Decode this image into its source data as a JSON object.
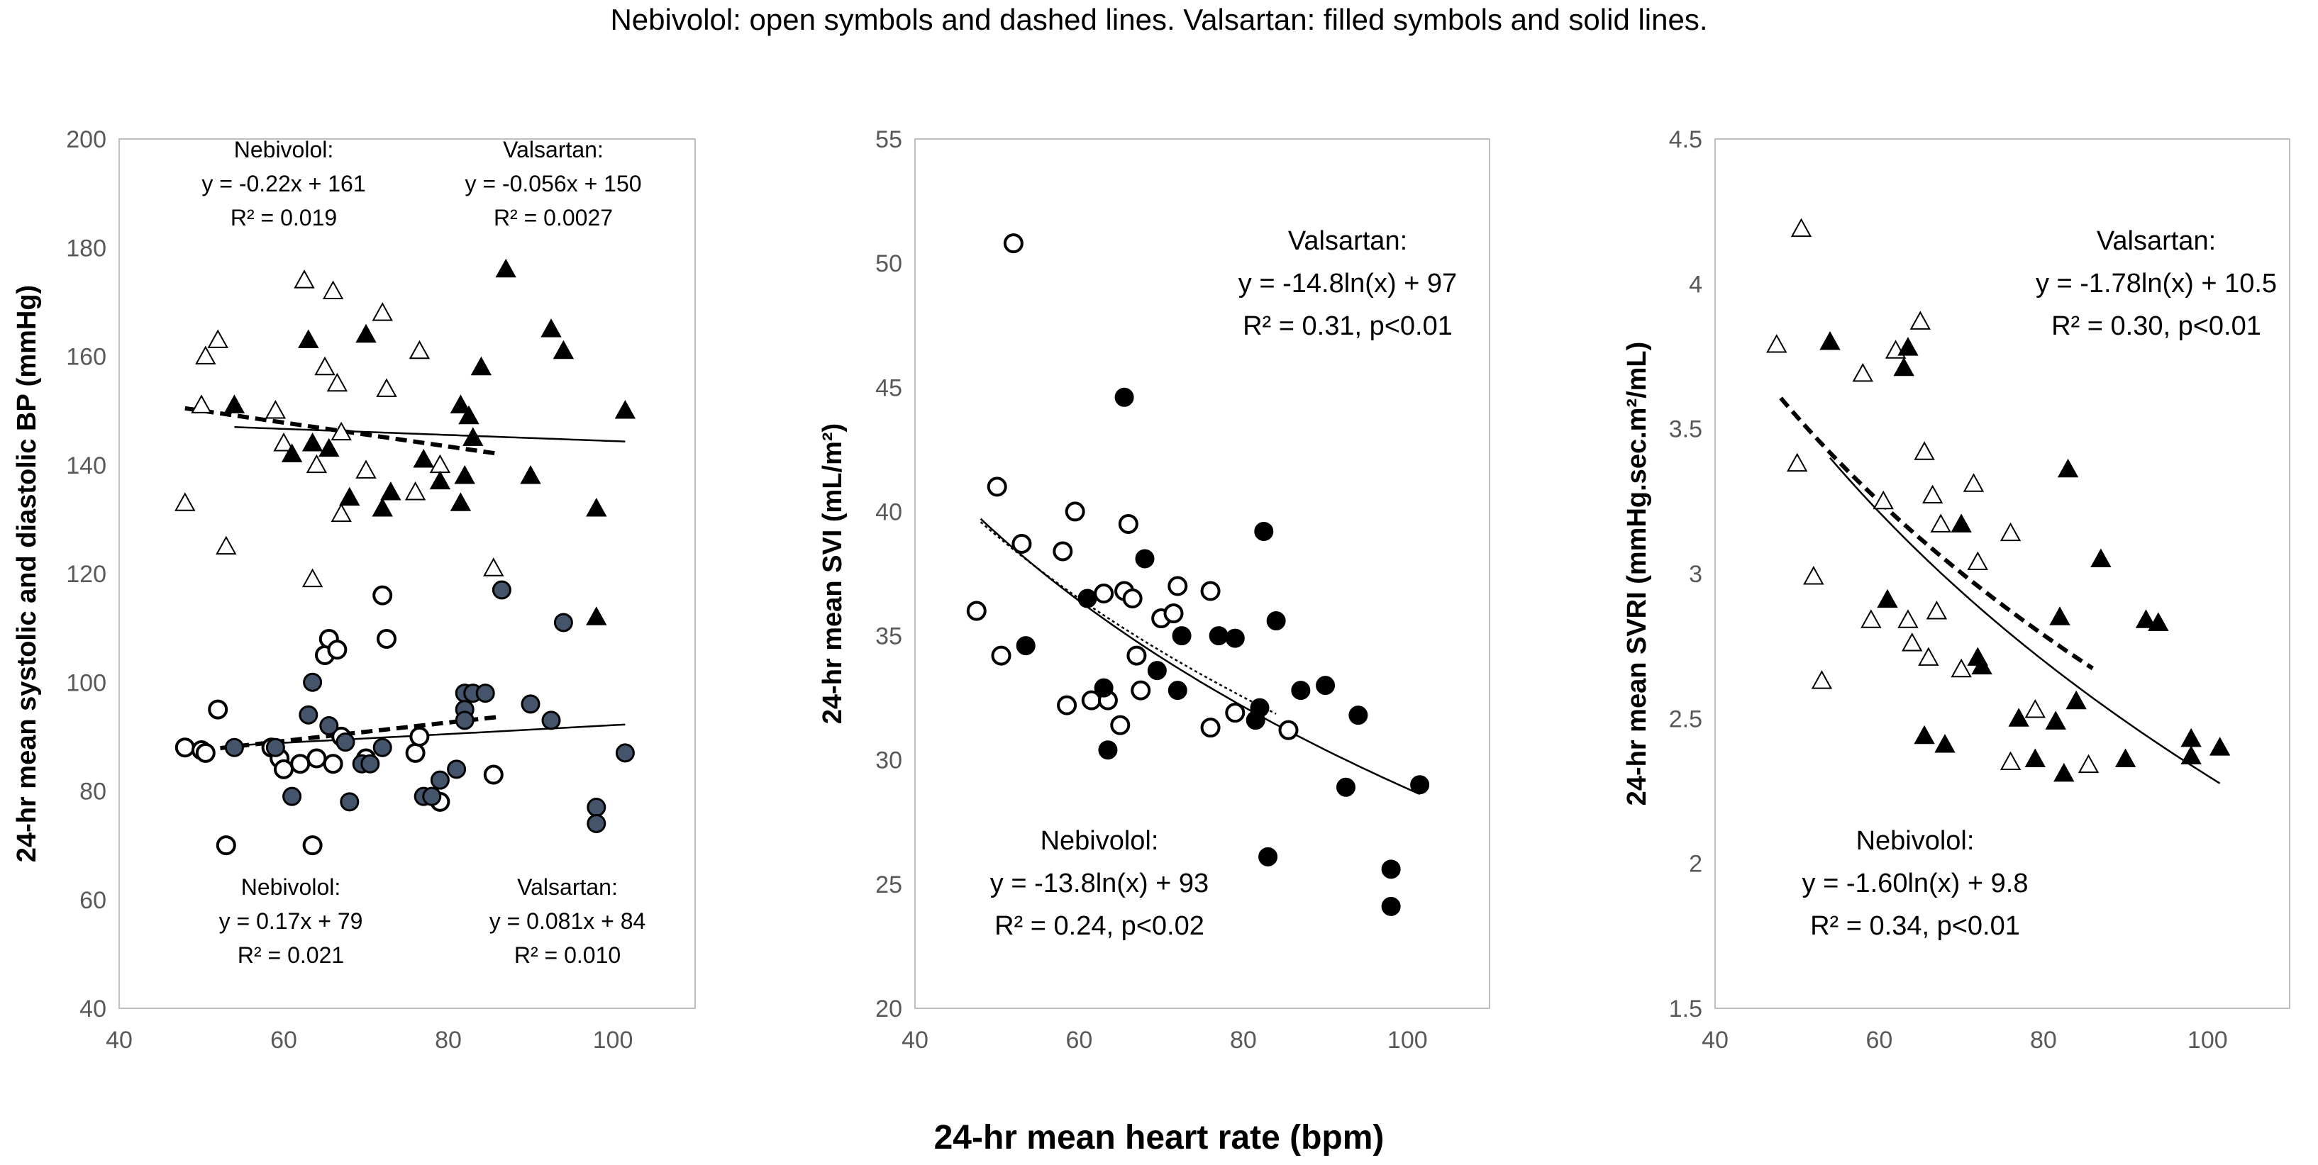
{
  "caption": "Nebivolol: open symbols and dashed lines. Valsartan: filled symbols and solid lines.",
  "x_axis_label": "24-hr mean heart rate (bpm)",
  "chart_data": [
    {
      "type": "scatter",
      "ylabel": "24-hr mean systolic and diastolic BP (mmHg)",
      "xlim": [
        40,
        110
      ],
      "ylim": [
        40,
        200
      ],
      "x_ticks": [
        "40",
        "60",
        "80",
        "100"
      ],
      "y_ticks": [
        "40",
        "60",
        "80",
        "100",
        "120",
        "140",
        "160",
        "180",
        "200"
      ],
      "series": [
        {
          "name": "Nebivolol systolic",
          "marker": "triangle",
          "fill": "open",
          "points": [
            [
              48,
              133
            ],
            [
              50,
              151
            ],
            [
              50.5,
              160
            ],
            [
              52,
              163
            ],
            [
              53,
              125
            ],
            [
              59,
              150
            ],
            [
              60,
              144
            ],
            [
              62.5,
              174
            ],
            [
              63.5,
              119
            ],
            [
              64,
              140
            ],
            [
              65,
              158
            ],
            [
              66,
              172
            ],
            [
              66.5,
              155
            ],
            [
              67,
              131
            ],
            [
              67,
              146
            ],
            [
              70,
              139
            ],
            [
              72,
              168
            ],
            [
              72.5,
              154
            ],
            [
              76,
              135
            ],
            [
              76.5,
              161
            ],
            [
              79,
              140
            ],
            [
              85.5,
              121
            ]
          ]
        },
        {
          "name": "Valsartan systolic",
          "marker": "triangle",
          "fill": "filled",
          "points": [
            [
              54,
              151
            ],
            [
              61,
              142
            ],
            [
              63,
              163
            ],
            [
              63.5,
              144
            ],
            [
              65.5,
              143
            ],
            [
              68,
              134
            ],
            [
              70,
              164
            ],
            [
              72,
              132
            ],
            [
              73,
              135
            ],
            [
              77,
              141
            ],
            [
              79,
              137
            ],
            [
              81.5,
              133
            ],
            [
              81.5,
              151
            ],
            [
              82,
              138
            ],
            [
              82.5,
              149
            ],
            [
              83,
              145
            ],
            [
              84,
              158
            ],
            [
              87,
              176
            ],
            [
              90,
              138
            ],
            [
              92.5,
              165
            ],
            [
              94,
              161
            ],
            [
              98,
              132
            ],
            [
              98,
              112
            ],
            [
              101.5,
              150
            ]
          ]
        },
        {
          "name": "Nebivolol diastolic",
          "marker": "circle",
          "fill": "open",
          "points": [
            [
              48,
              88
            ],
            [
              50,
              87.5
            ],
            [
              50.5,
              87
            ],
            [
              52,
              95
            ],
            [
              53,
              70
            ],
            [
              58.5,
              88
            ],
            [
              59.5,
              86
            ],
            [
              60,
              84
            ],
            [
              62,
              85
            ],
            [
              63.5,
              70
            ],
            [
              64,
              86
            ],
            [
              65,
              105
            ],
            [
              65.5,
              108
            ],
            [
              66,
              85
            ],
            [
              66.5,
              106
            ],
            [
              67,
              90
            ],
            [
              70,
              86
            ],
            [
              72,
              116
            ],
            [
              72.5,
              108
            ],
            [
              76,
              87
            ],
            [
              76.5,
              90
            ],
            [
              79,
              78
            ],
            [
              85.5,
              83
            ]
          ]
        },
        {
          "name": "Valsartan diastolic",
          "marker": "circle",
          "fill": "filled",
          "points": [
            [
              54,
              88
            ],
            [
              59,
              88
            ],
            [
              61,
              79
            ],
            [
              63,
              94
            ],
            [
              63.5,
              100
            ],
            [
              65.5,
              92
            ],
            [
              67.5,
              89
            ],
            [
              68,
              78
            ],
            [
              69.5,
              85
            ],
            [
              70.5,
              85
            ],
            [
              72,
              88
            ],
            [
              77,
              79
            ],
            [
              78,
              79
            ],
            [
              79,
              82
            ],
            [
              81,
              84
            ],
            [
              82,
              98
            ],
            [
              82,
              95
            ],
            [
              82,
              93
            ],
            [
              83,
              98
            ],
            [
              84.5,
              98
            ],
            [
              86.5,
              117
            ],
            [
              90,
              96
            ],
            [
              92.5,
              93
            ],
            [
              94,
              111
            ],
            [
              98,
              77
            ],
            [
              98,
              74
            ],
            [
              101.5,
              87
            ]
          ]
        }
      ],
      "trendlines": [
        {
          "name": "Nebivolol systolic fit",
          "style": "dashed",
          "equation": "y = -0.22x + 161",
          "x_range": [
            48,
            86
          ]
        },
        {
          "name": "Valsartan systolic fit",
          "style": "solid",
          "equation": "y = -0.056x + 150",
          "x_range": [
            54,
            101.5
          ]
        },
        {
          "name": "Nebivolol diastolic fit",
          "style": "dashed",
          "equation": "y = 0.17x + 79",
          "x_range": [
            48,
            86
          ]
        },
        {
          "name": "Valsartan diastolic fit",
          "style": "solid",
          "equation": "y = 0.081x + 84",
          "x_range": [
            54,
            101.5
          ]
        }
      ],
      "annotations": [
        {
          "label": "Nebivolol:",
          "eq": "y = -0.22x + 161",
          "r2": "R² = 0.019",
          "pos": "top-left"
        },
        {
          "label": "Valsartan:",
          "eq": "y = -0.056x + 150",
          "r2": "R² = 0.0027",
          "pos": "top-right"
        },
        {
          "label": "Nebivolol:",
          "eq": "y = 0.17x + 79",
          "r2": "R² = 0.021",
          "pos": "bottom-left"
        },
        {
          "label": "Valsartan:",
          "eq": "y = 0.081x + 84",
          "r2": "R² = 0.010",
          "pos": "bottom-right"
        }
      ]
    },
    {
      "type": "scatter",
      "ylabel": "24-hr mean SVI (mL/m²)",
      "xlim": [
        40,
        110
      ],
      "ylim": [
        20,
        55
      ],
      "x_ticks": [
        "40",
        "60",
        "80",
        "100"
      ],
      "y_ticks": [
        "20",
        "25",
        "30",
        "35",
        "40",
        "45",
        "50",
        "55"
      ],
      "series": [
        {
          "name": "Nebivolol",
          "marker": "circle",
          "fill": "open",
          "points": [
            [
              47.5,
              36
            ],
            [
              50,
              41
            ],
            [
              50.5,
              34.2
            ],
            [
              52,
              50.8
            ],
            [
              53,
              38.7
            ],
            [
              58,
              38.4
            ],
            [
              58.5,
              32.2
            ],
            [
              59.5,
              40
            ],
            [
              61.5,
              32.4
            ],
            [
              63,
              36.7
            ],
            [
              63.5,
              32.4
            ],
            [
              65,
              31.4
            ],
            [
              65.5,
              36.8
            ],
            [
              66,
              39.5
            ],
            [
              66.5,
              36.5
            ],
            [
              67,
              34.2
            ],
            [
              67.5,
              32.8
            ],
            [
              70,
              35.7
            ],
            [
              71.5,
              35.9
            ],
            [
              72,
              37
            ],
            [
              76,
              36.8
            ],
            [
              76,
              31.3
            ],
            [
              79,
              31.9
            ],
            [
              85.5,
              31.2
            ]
          ]
        },
        {
          "name": "Valsartan",
          "marker": "circle",
          "fill": "filled",
          "points": [
            [
              53.5,
              34.6
            ],
            [
              61,
              36.5
            ],
            [
              63,
              32.9
            ],
            [
              63.5,
              30.4
            ],
            [
              65.5,
              44.6
            ],
            [
              68,
              38.1
            ],
            [
              69.5,
              33.6
            ],
            [
              72,
              32.8
            ],
            [
              72.5,
              35
            ],
            [
              77,
              35
            ],
            [
              79,
              34.9
            ],
            [
              81.5,
              31.6
            ],
            [
              82,
              32.1
            ],
            [
              82.5,
              39.2
            ],
            [
              83,
              26.1
            ],
            [
              84,
              35.6
            ],
            [
              87,
              32.8
            ],
            [
              90,
              33
            ],
            [
              92.5,
              28.9
            ],
            [
              94,
              31.8
            ],
            [
              98,
              25.6
            ],
            [
              98,
              24.1
            ],
            [
              101.5,
              29
            ]
          ]
        }
      ],
      "trendlines": [
        {
          "name": "Valsartan fit",
          "style": "solid",
          "equation": "y = -14.8ln(x) + 97",
          "x_range": [
            48,
            101.5
          ]
        },
        {
          "name": "Nebivolol fit",
          "style": "dotted",
          "equation": "y = -13.8ln(x) + 93",
          "x_range": [
            48,
            84
          ]
        }
      ],
      "annotations": [
        {
          "label": "Valsartan:",
          "eq": "y = -14.8ln(x) + 97",
          "r2": "R² = 0.31, p<0.01",
          "pos": "top-right"
        },
        {
          "label": "Nebivolol:",
          "eq": "y = -13.8ln(x) + 93",
          "r2": "R² = 0.24, p<0.02",
          "pos": "bottom-left"
        }
      ]
    },
    {
      "type": "scatter",
      "ylabel": "24-hr mean SVRI (mmHg.sec.m²/mL)",
      "xlim": [
        40,
        110
      ],
      "ylim": [
        1.5,
        4.5
      ],
      "x_ticks": [
        "40",
        "60",
        "80",
        "100"
      ],
      "y_ticks": [
        "1.5",
        "2",
        "2.5",
        "3",
        "3.5",
        "4",
        "4.5"
      ],
      "series": [
        {
          "name": "Nebivolol",
          "marker": "triangle",
          "fill": "open",
          "points": [
            [
              47.5,
              3.79
            ],
            [
              50,
              3.38
            ],
            [
              50.5,
              4.19
            ],
            [
              52,
              2.99
            ],
            [
              53,
              2.63
            ],
            [
              58,
              3.69
            ],
            [
              59,
              2.84
            ],
            [
              60.5,
              3.25
            ],
            [
              62,
              3.77
            ],
            [
              63.5,
              2.84
            ],
            [
              64,
              2.76
            ],
            [
              65,
              3.87
            ],
            [
              65.5,
              3.42
            ],
            [
              66,
              2.71
            ],
            [
              66.5,
              3.27
            ],
            [
              67,
              2.87
            ],
            [
              67.5,
              3.17
            ],
            [
              70,
              2.67
            ],
            [
              71.5,
              3.31
            ],
            [
              72,
              3.04
            ],
            [
              76,
              3.14
            ],
            [
              76,
              2.35
            ],
            [
              79,
              2.53
            ],
            [
              85.5,
              2.34
            ]
          ]
        },
        {
          "name": "Valsartan",
          "marker": "triangle",
          "fill": "filled",
          "points": [
            [
              54,
              3.8
            ],
            [
              61,
              2.91
            ],
            [
              63,
              3.71
            ],
            [
              63.5,
              3.78
            ],
            [
              65.5,
              2.44
            ],
            [
              68,
              2.41
            ],
            [
              70,
              3.17
            ],
            [
              72,
              2.71
            ],
            [
              72.5,
              2.68
            ],
            [
              77,
              2.5
            ],
            [
              79,
              2.36
            ],
            [
              81.5,
              2.49
            ],
            [
              82,
              2.85
            ],
            [
              82.5,
              2.31
            ],
            [
              83,
              3.36
            ],
            [
              84,
              2.56
            ],
            [
              87,
              3.05
            ],
            [
              90,
              2.36
            ],
            [
              92.5,
              2.84
            ],
            [
              94,
              2.83
            ],
            [
              98,
              2.43
            ],
            [
              98,
              2.37
            ],
            [
              101.5,
              2.4
            ]
          ]
        }
      ],
      "trendlines": [
        {
          "name": "Valsartan fit",
          "style": "solid",
          "equation": "y = -1.78ln(x) + 10.5",
          "x_range": [
            54,
            101.5
          ]
        },
        {
          "name": "Nebivolol fit",
          "style": "dashed",
          "equation": "y = -1.60ln(x) + 9.8",
          "x_range": [
            48,
            86
          ]
        }
      ],
      "annotations": [
        {
          "label": "Valsartan:",
          "eq": "y = -1.78ln(x) + 10.5",
          "r2": "R² = 0.30, p<0.01",
          "pos": "top-right"
        },
        {
          "label": "Nebivolol:",
          "eq": "y = -1.60ln(x) + 9.8",
          "r2": "R² = 0.34, p<0.01",
          "pos": "bottom-left"
        }
      ]
    }
  ]
}
